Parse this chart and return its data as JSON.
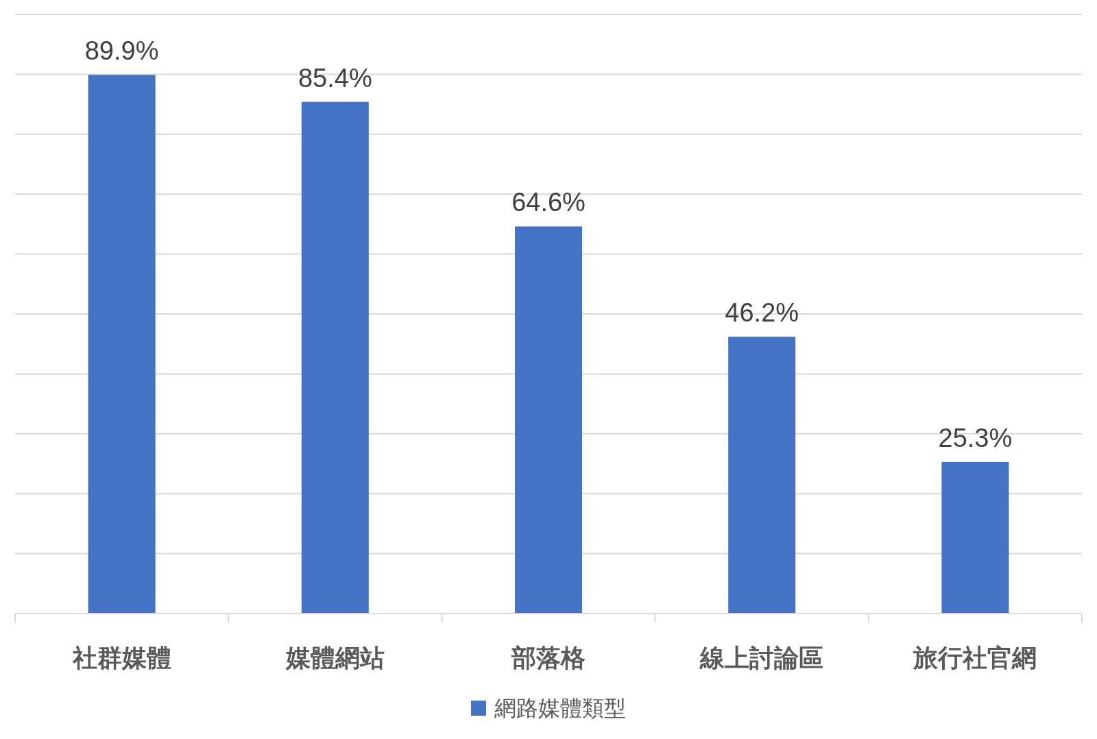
{
  "chart_data": {
    "type": "bar",
    "categories": [
      "社群媒體",
      "媒體網站",
      "部落格",
      "線上討論區",
      "旅行社官網"
    ],
    "series": [
      {
        "name": "網路媒體類型",
        "color": "#4472c4",
        "values": [
          89.9,
          85.4,
          64.6,
          46.2,
          25.3
        ],
        "value_labels": [
          "89.9%",
          "85.4%",
          "64.6%",
          "46.2%",
          "25.3%"
        ]
      }
    ],
    "ylim": [
      0,
      100
    ],
    "yticks": [
      {
        "value": 0,
        "label": null
      },
      {
        "value": 10,
        "label": null
      },
      {
        "value": 20,
        "label": null
      },
      {
        "value": 30,
        "label": null
      },
      {
        "value": 40,
        "label": null
      },
      {
        "value": 50,
        "label": null
      },
      {
        "value": 60,
        "label": null
      },
      {
        "value": 70,
        "label": null
      },
      {
        "value": 80,
        "label": null
      },
      {
        "value": 90,
        "label": null
      },
      {
        "value": 100,
        "label": null
      }
    ],
    "grid": "y",
    "legend": "bottom",
    "tick_labels": "x"
  }
}
